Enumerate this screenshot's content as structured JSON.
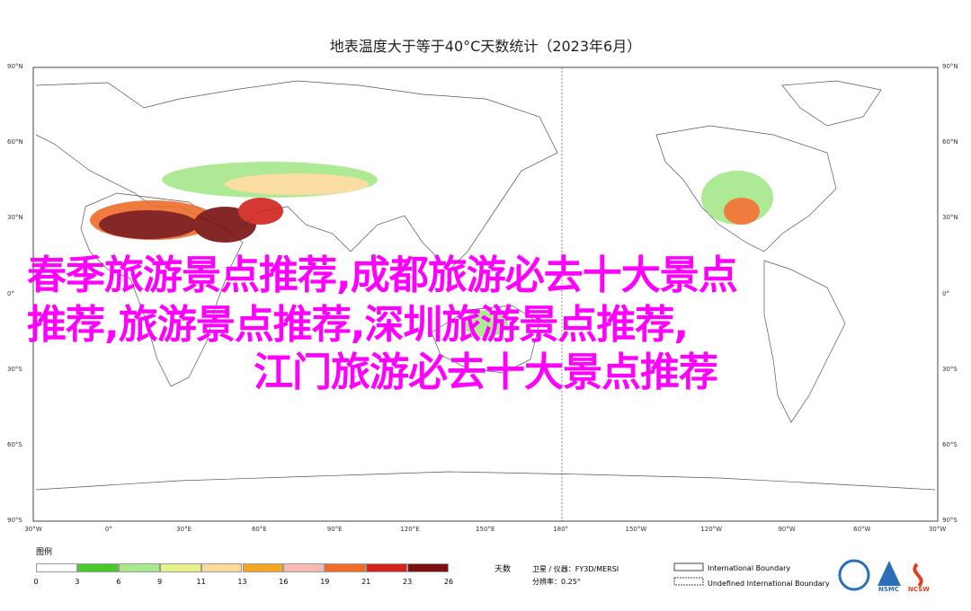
{
  "title": "地表温度大于等于40°C天数统计（2023年6月）",
  "lat_labels": [
    "90°N",
    "60°N",
    "30°N",
    "0°",
    "30°S",
    "60°S",
    "90°S"
  ],
  "lon_labels": [
    "30°W",
    "0°",
    "30°E",
    "60°E",
    "90°E",
    "120°E",
    "150°E",
    "180°",
    "150°W",
    "120°W",
    "90°W",
    "60°W",
    "30°W"
  ],
  "legend": {
    "title": "图例",
    "unit": "天数",
    "labels": [
      "0",
      "3",
      "6",
      "9",
      "11",
      "13",
      "16",
      "19",
      "21",
      "23",
      "26"
    ],
    "colors": [
      "#ffffff",
      "#4cc92a",
      "#a6e88a",
      "#e6f08c",
      "#fbd99a",
      "#f5a623",
      "#f6b8b0",
      "#ef6d2a",
      "#d0231a",
      "#7a1010"
    ]
  },
  "source": {
    "satellite": "卫星 / 仪器：FY3D/MERSI",
    "resolution": "分辨率：0.25°"
  },
  "boundaries": [
    "International Boundary",
    "Undefined International Boundary"
  ],
  "logos": [
    "NSMC",
    "NCSW"
  ],
  "overlay": [
    "春季旅游景点推荐,成都旅游必去十大景点",
    "推荐,旅游景点推荐,深圳旅游景点推荐,",
    "江门旅游必去十大景点推荐"
  ]
}
